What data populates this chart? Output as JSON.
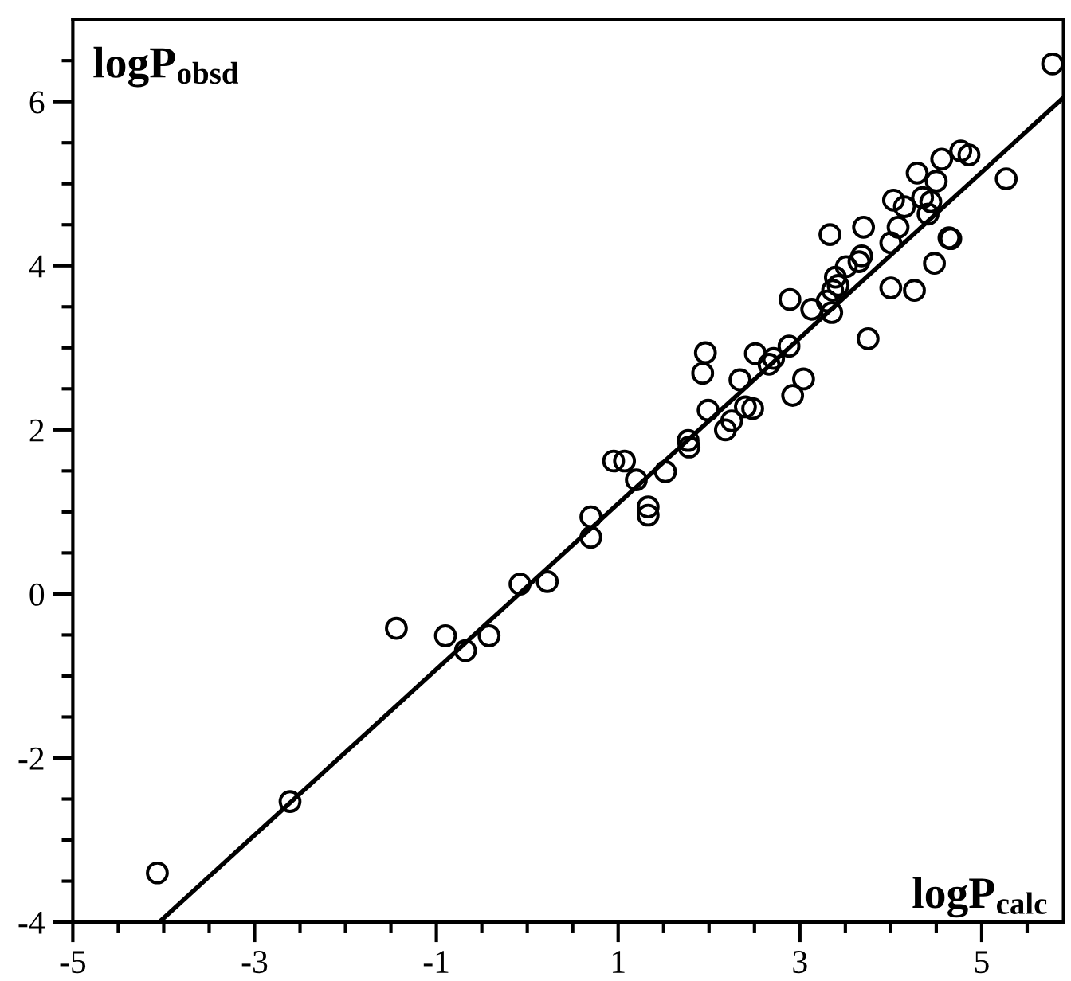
{
  "chart_data": {
    "type": "scatter",
    "xlabel": "logP$_{calc}$",
    "ylabel": "logP$_{obsd}$",
    "xlim": [
      -5,
      5.9
    ],
    "ylim": [
      -4,
      7
    ],
    "xticks": [
      -5,
      {
        "value": -4.5,
        "label": null
      },
      {
        "value": -4,
        "label": null
      },
      {
        "value": -3.5,
        "label": null
      },
      -3,
      {
        "value": -2.5,
        "label": null
      },
      {
        "value": -2,
        "label": null
      },
      {
        "value": -1.5,
        "label": null
      },
      -1,
      {
        "value": -0.5,
        "label": null
      },
      {
        "value": 0,
        "label": null
      },
      {
        "value": 0.5,
        "label": null
      },
      1,
      {
        "value": 1.5,
        "label": null
      },
      {
        "value": 2,
        "label": null
      },
      {
        "value": 2.5,
        "label": null
      },
      3,
      {
        "value": 3.5,
        "label": null
      },
      {
        "value": 4,
        "label": null
      },
      {
        "value": 4.5,
        "label": null
      },
      5,
      {
        "value": 5.5,
        "label": null
      }
    ],
    "yticks": [
      -4,
      {
        "value": -3.5,
        "label": null
      },
      {
        "value": -3,
        "label": null
      },
      {
        "value": -2.5,
        "label": null
      },
      -2,
      {
        "value": -1.5,
        "label": null
      },
      {
        "value": -1,
        "label": null
      },
      {
        "value": -0.5,
        "label": null
      },
      0,
      {
        "value": 0.5,
        "label": null
      },
      {
        "value": 1,
        "label": null
      },
      {
        "value": 1.5,
        "label": null
      },
      2,
      {
        "value": 2.5,
        "label": null
      },
      {
        "value": 3,
        "label": null
      },
      {
        "value": 3.5,
        "label": null
      },
      4,
      {
        "value": 4.5,
        "label": null
      },
      {
        "value": 5,
        "label": null
      },
      {
        "value": 5.5,
        "label": null
      },
      6,
      {
        "value": 6.5,
        "label": null
      }
    ],
    "grid": false,
    "legend": false,
    "marker": "circle",
    "series": [
      {
        "color": "#000000",
        "x": [
          5.78,
          5.27,
          4.77,
          4.86,
          4.56,
          4.29,
          4.5,
          4.03,
          4.35,
          4.44,
          4.15,
          4.41,
          4.08,
          4.0,
          3.33,
          3.7,
          4.64,
          4.66,
          4.48,
          3.68,
          3.65,
          3.51,
          3.39,
          3.42,
          3.36,
          4.0,
          4.26,
          2.89,
          3.13,
          3.3,
          3.35,
          3.75,
          1.96,
          1.93,
          2.51,
          2.71,
          2.66,
          2.88,
          2.34,
          3.04,
          2.92,
          1.99,
          2.4,
          2.48,
          2.18,
          2.25,
          0.95,
          1.07,
          1.2,
          1.52,
          1.33,
          1.33,
          0.7,
          0.7,
          -0.08,
          0.22,
          1.77,
          1.78,
          -4.07,
          -2.61,
          -1.44,
          -0.9,
          -0.68,
          -0.42
        ],
        "values": [
          6.46,
          5.06,
          5.4,
          5.35,
          5.3,
          5.13,
          5.03,
          4.8,
          4.83,
          4.78,
          4.72,
          4.63,
          4.47,
          4.28,
          4.38,
          4.47,
          4.34,
          4.33,
          4.03,
          4.12,
          4.05,
          3.99,
          3.86,
          3.76,
          3.7,
          3.73,
          3.7,
          3.59,
          3.47,
          3.57,
          3.43,
          3.11,
          2.94,
          2.69,
          2.93,
          2.87,
          2.8,
          3.02,
          2.61,
          2.62,
          2.42,
          2.24,
          2.28,
          2.26,
          2.0,
          2.11,
          1.62,
          1.62,
          1.39,
          1.49,
          1.06,
          0.96,
          0.94,
          0.69,
          0.12,
          0.15,
          1.87,
          1.79,
          -3.4,
          -2.53,
          -0.42,
          -0.51,
          -0.69,
          -0.51
        ]
      },
      {
        "type": "line",
        "color": "#000000",
        "line_style": "solid",
        "marker": "none",
        "x": [
          -4.05,
          5.9
        ],
        "values": [
          -4.0,
          6.05
        ]
      }
    ]
  }
}
